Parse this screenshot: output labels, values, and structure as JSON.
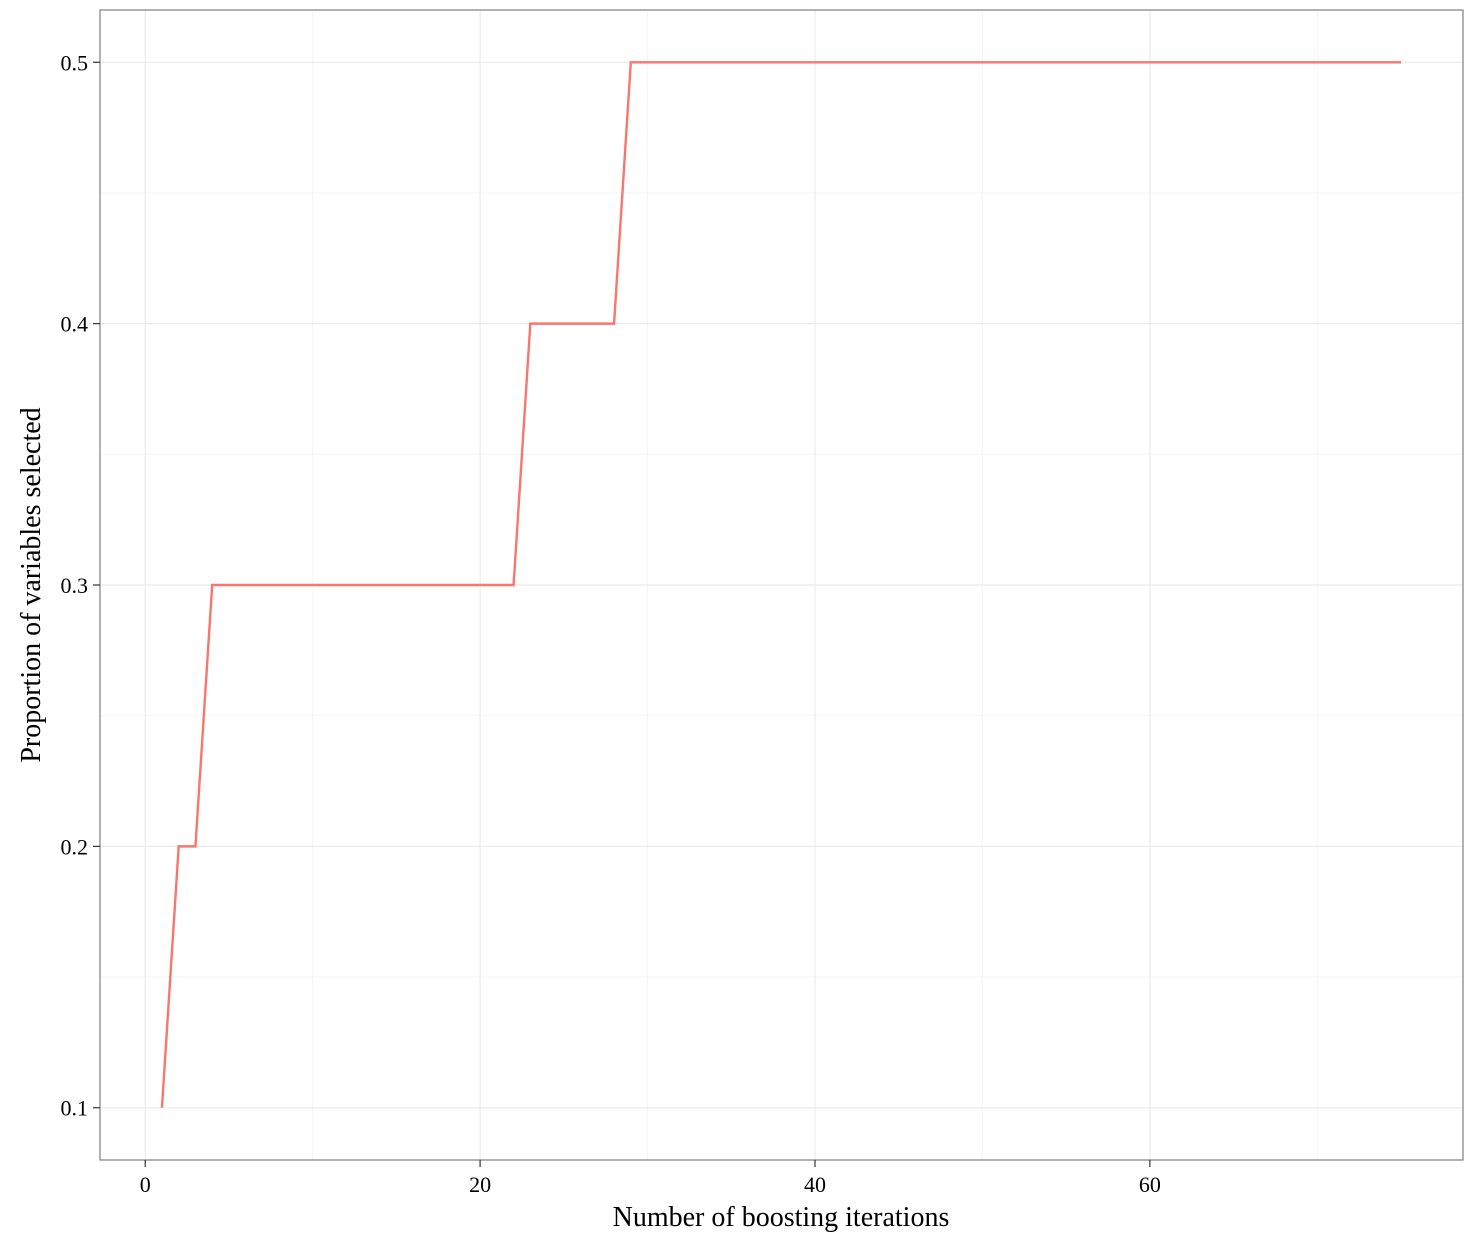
{
  "chart_data": {
    "type": "line",
    "xlabel": "Number of boosting iterations",
    "ylabel": "Proportion of variables selected",
    "x": [
      1,
      2,
      3,
      4,
      5,
      6,
      7,
      8,
      9,
      10,
      11,
      12,
      13,
      14,
      15,
      16,
      17,
      18,
      19,
      20,
      21,
      22,
      23,
      24,
      25,
      26,
      27,
      28,
      29,
      30,
      31,
      32,
      33,
      34,
      35,
      36,
      37,
      38,
      39,
      40,
      41,
      42,
      43,
      44,
      45,
      46,
      47,
      48,
      49,
      50,
      51,
      52,
      53,
      54,
      55,
      56,
      57,
      58,
      59,
      60,
      61,
      62,
      63,
      64,
      65,
      66,
      67,
      68,
      69,
      70,
      71,
      72,
      73,
      74,
      75
    ],
    "series": [
      {
        "color": "#F8766D",
        "values": [
          0.1,
          0.2,
          0.2,
          0.3,
          0.3,
          0.3,
          0.3,
          0.3,
          0.3,
          0.3,
          0.3,
          0.3,
          0.3,
          0.3,
          0.3,
          0.3,
          0.3,
          0.3,
          0.3,
          0.3,
          0.3,
          0.3,
          0.4,
          0.4,
          0.4,
          0.4,
          0.4,
          0.4,
          0.5,
          0.5,
          0.5,
          0.5,
          0.5,
          0.5,
          0.5,
          0.5,
          0.5,
          0.5,
          0.5,
          0.5,
          0.5,
          0.5,
          0.5,
          0.5,
          0.5,
          0.5,
          0.5,
          0.5,
          0.5,
          0.5,
          0.5,
          0.5,
          0.5,
          0.5,
          0.5,
          0.5,
          0.5,
          0.5,
          0.5,
          0.5,
          0.5,
          0.5,
          0.5,
          0.5,
          0.5,
          0.5,
          0.5,
          0.5,
          0.5,
          0.5,
          0.5,
          0.5,
          0.5,
          0.5,
          0.5
        ]
      }
    ],
    "xlim": [
      -2.7,
      78.7
    ],
    "xticks": [
      0,
      20,
      40,
      60
    ],
    "x_minor_grid": [
      10,
      30,
      50,
      70
    ],
    "ylim": [
      0.08,
      0.52
    ],
    "yticks": [
      0.1,
      0.2,
      0.3,
      0.4,
      0.5
    ],
    "y_minor_grid": [
      0.15,
      0.25,
      0.35,
      0.45
    ],
    "grid": true
  }
}
